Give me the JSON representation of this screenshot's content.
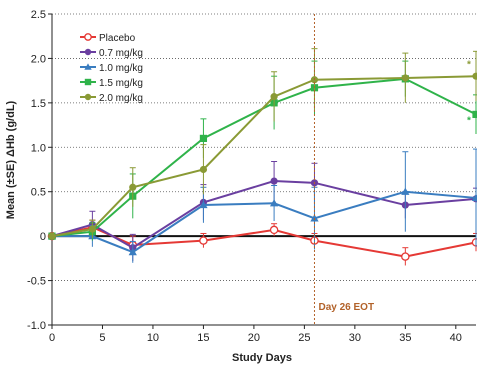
{
  "chart_data": {
    "type": "line",
    "title": "",
    "xlabel": "Study Days",
    "ylabel": "Mean (±SE) ΔHb (g/dL)",
    "xlim": [
      0,
      42
    ],
    "ylim": [
      -1.0,
      2.5
    ],
    "xticks": [
      0,
      5,
      10,
      15,
      20,
      25,
      30,
      35,
      40
    ],
    "yticks": [
      -1.0,
      -0.5,
      0,
      0.5,
      1.0,
      1.5,
      2.0,
      2.5
    ],
    "xtick_labels": [
      "0",
      "5",
      "10",
      "15",
      "20",
      "25",
      "30",
      "35",
      "40"
    ],
    "ytick_labels": [
      "-1.0",
      "-0.5",
      "0",
      "0.5",
      "1.0",
      "1.5",
      "2.0",
      "2.5"
    ],
    "grid": "horizontal-dotted",
    "legend_position": "top-left",
    "series": [
      {
        "name": "Placebo",
        "color": "#e53935",
        "marker": "circle-open",
        "x": [
          0,
          4,
          8,
          15,
          22,
          26,
          35,
          42
        ],
        "y": [
          0.0,
          0.1,
          -0.1,
          -0.05,
          0.07,
          -0.05,
          -0.23,
          -0.07
        ],
        "err": [
          0.0,
          0.08,
          0.1,
          0.08,
          0.07,
          0.08,
          0.1,
          0.1
        ]
      },
      {
        "name": "0.7 mg/kg",
        "color": "#6a3fa0",
        "marker": "circle",
        "x": [
          0,
          4,
          8,
          15,
          22,
          26,
          35,
          42
        ],
        "y": [
          0.0,
          0.13,
          -0.13,
          0.38,
          0.62,
          0.6,
          0.35,
          0.42
        ],
        "err": [
          0.0,
          0.15,
          0.15,
          0.2,
          0.22,
          0.22,
          0.15,
          0.12
        ]
      },
      {
        "name": "1.0 mg/kg",
        "color": "#3a7dc0",
        "marker": "triangle",
        "x": [
          0,
          4,
          8,
          15,
          22,
          26,
          35,
          42
        ],
        "y": [
          0.0,
          0.0,
          -0.18,
          0.35,
          0.37,
          0.2,
          0.5,
          0.43
        ],
        "err": [
          0.0,
          0.12,
          0.12,
          0.2,
          0.2,
          0.35,
          0.45,
          0.55
        ]
      },
      {
        "name": "1.5 mg/kg",
        "color": "#2fb34a",
        "marker": "square",
        "x": [
          0,
          4,
          8,
          15,
          22,
          26,
          35,
          42
        ],
        "y": [
          0.0,
          0.05,
          0.45,
          1.1,
          1.5,
          1.67,
          1.77,
          1.37
        ],
        "err": [
          0.0,
          0.1,
          0.25,
          0.22,
          0.3,
          0.3,
          0.2,
          0.22
        ]
      },
      {
        "name": "2.0 mg/kg",
        "color": "#8a9a35",
        "marker": "circle",
        "x": [
          0,
          4,
          8,
          15,
          22,
          26,
          35,
          42
        ],
        "y": [
          0.0,
          0.08,
          0.55,
          0.75,
          1.57,
          1.76,
          1.78,
          1.8
        ],
        "err": [
          0.0,
          0.1,
          0.22,
          0.28,
          0.28,
          0.35,
          0.28,
          0.28
        ]
      }
    ],
    "annotations": [
      {
        "label": "Day 26 EOT",
        "x": 26,
        "y": -0.83,
        "color": "#b2622a",
        "kind": "vline"
      },
      {
        "label": "*",
        "x": 41.3,
        "y": 1.9,
        "color": "#8a9a35",
        "kind": "text"
      },
      {
        "label": "*",
        "x": 41.3,
        "y": 1.27,
        "color": "#2fb34a",
        "kind": "text"
      }
    ]
  }
}
